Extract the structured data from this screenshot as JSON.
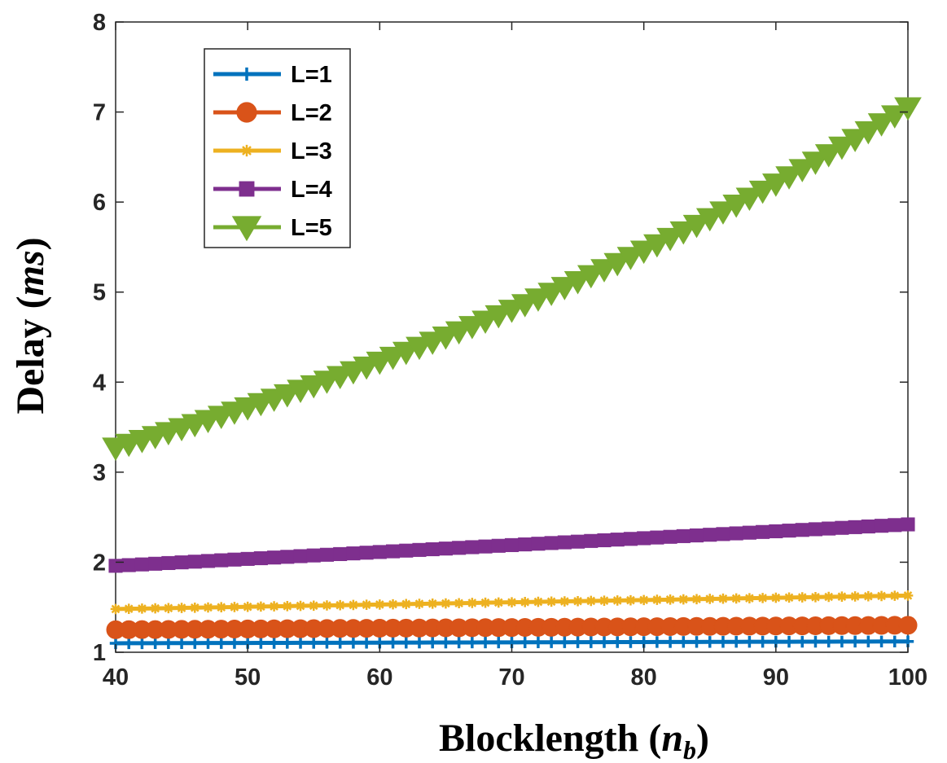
{
  "chart_data": {
    "type": "line",
    "title": "",
    "xlabel": "Blocklength",
    "xlabel_symbol": "n",
    "xlabel_subscript": "b",
    "ylabel": "Delay",
    "ylabel_symbol": "ms",
    "xlim": [
      40,
      100
    ],
    "ylim": [
      1,
      8
    ],
    "xticks": [
      "40",
      "50",
      "60",
      "70",
      "80",
      "90",
      "100"
    ],
    "yticks": [
      "1",
      "2",
      "3",
      "4",
      "5",
      "6",
      "7",
      "8"
    ],
    "grid": false,
    "legend_position": "top-left",
    "x": [
      40,
      100
    ],
    "series": [
      {
        "name": "L=1",
        "color": "#0072BD",
        "marker": "plus",
        "values_at_endpoints": [
          1.1,
          1.12
        ],
        "growth": "linear"
      },
      {
        "name": "L=2",
        "color": "#D95319",
        "marker": "circle",
        "values_at_endpoints": [
          1.25,
          1.3
        ],
        "growth": "linear"
      },
      {
        "name": "L=3",
        "color": "#EDB120",
        "marker": "star",
        "values_at_endpoints": [
          1.48,
          1.63
        ],
        "growth": "linear"
      },
      {
        "name": "L=4",
        "color": "#7E2F8E",
        "marker": "square",
        "values_at_endpoints": [
          1.96,
          2.42
        ],
        "growth": "linear"
      },
      {
        "name": "L=5",
        "color": "#77AC30",
        "marker": "triangle-down",
        "values_at_endpoints": [
          3.27,
          7.05
        ],
        "growth": "exponential"
      }
    ]
  }
}
